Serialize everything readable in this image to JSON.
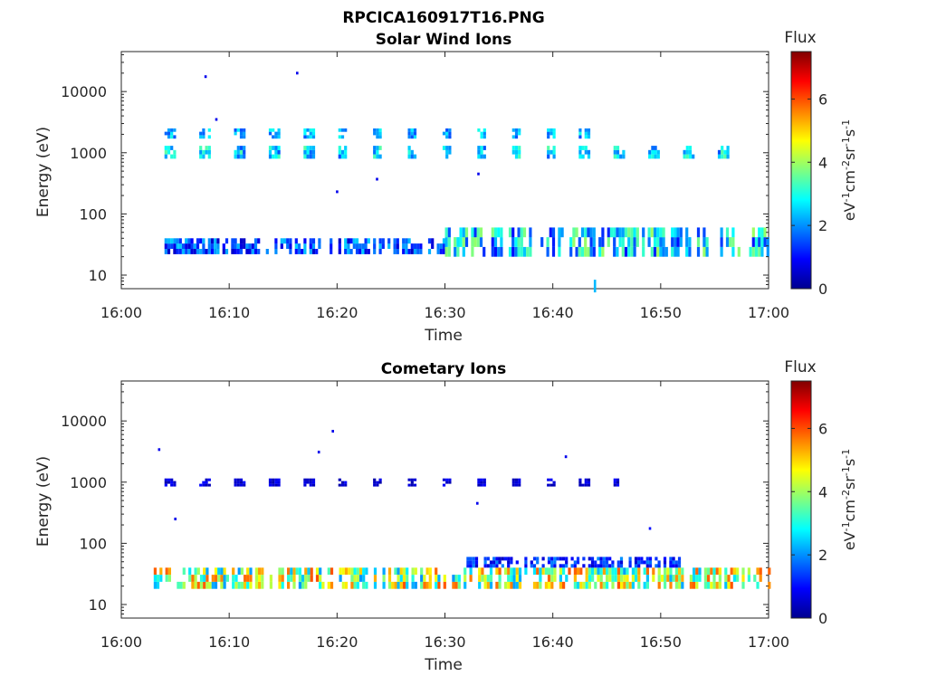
{
  "figure_title": "RPCICA160917T16.PNG",
  "colorbar": {
    "title": "Flux",
    "label_base": "eV",
    "label_parts": [
      "-1",
      "cm",
      "-2",
      "sr",
      "-1",
      "s",
      "-1"
    ],
    "ticks": [
      "0",
      "2",
      "4",
      "6"
    ],
    "range": [
      0,
      7.5
    ]
  },
  "chart_data": [
    {
      "type": "heatmap",
      "title": "Solar Wind Ions",
      "xlabel": "Time",
      "ylabel": "Energy (eV)",
      "xlim": [
        "16:00",
        "17:00"
      ],
      "x_ticks": [
        "16:00",
        "16:10",
        "16:20",
        "16:30",
        "16:40",
        "16:50",
        "17:00"
      ],
      "ylim": [
        6,
        45000
      ],
      "y_scale": "log",
      "y_ticks": [
        "10",
        "100",
        "1000",
        "10000"
      ],
      "bands": [
        {
          "t_start": "16:04",
          "t_end": "16:58",
          "e_low": 800,
          "e_high": 1300,
          "flux_range": [
            1.5,
            3.5
          ],
          "description": "periodic ion beams near 1 keV"
        },
        {
          "t_start": "16:04",
          "t_end": "16:45",
          "e_low": 1700,
          "e_high": 2500,
          "flux_range": [
            1.5,
            3.0
          ]
        },
        {
          "t_start": "16:04",
          "t_end": "16:30",
          "e_low": 22,
          "e_high": 40,
          "flux_range": [
            0.5,
            2.5
          ]
        },
        {
          "t_start": "16:30",
          "t_end": "17:00",
          "e_low": 20,
          "e_high": 60,
          "flux_range": [
            1.0,
            4.0
          ]
        }
      ],
      "points": [
        {
          "t": "16:07.8",
          "e": 17500,
          "flux": 0.8
        },
        {
          "t": "16:16.3",
          "e": 20000,
          "flux": 0.8
        },
        {
          "t": "16:08.8",
          "e": 3500,
          "flux": 0.8
        },
        {
          "t": "16:20",
          "e": 230,
          "flux": 0.8
        },
        {
          "t": "16:23.7",
          "e": 370,
          "flux": 0.8
        },
        {
          "t": "16:33.1",
          "e": 450,
          "flux": 0.8
        },
        {
          "t": "16:43.9",
          "e": 8,
          "flux": 2.3
        }
      ]
    },
    {
      "type": "heatmap",
      "title": "Cometary Ions",
      "xlabel": "Time",
      "ylabel": "Energy (eV)",
      "xlim": [
        "16:00",
        "17:00"
      ],
      "x_ticks": [
        "16:00",
        "16:10",
        "16:20",
        "16:30",
        "16:40",
        "16:50",
        "17:00"
      ],
      "ylim": [
        6,
        45000
      ],
      "y_scale": "log",
      "y_ticks": [
        "10",
        "100",
        "1000",
        "10000"
      ],
      "bands": [
        {
          "t_start": "16:03",
          "t_end": "17:00",
          "e_low": 18,
          "e_high": 40,
          "flux_range": [
            2.0,
            6.0
          ],
          "description": "periodic low-energy cometary ion population"
        },
        {
          "t_start": "16:04",
          "t_end": "16:46",
          "e_low": 850,
          "e_high": 1150,
          "flux_range": [
            0.3,
            1.0
          ]
        },
        {
          "t_start": "16:32",
          "t_end": "16:52",
          "e_low": 40,
          "e_high": 60,
          "flux_range": [
            0.5,
            2.0
          ]
        }
      ],
      "points": [
        {
          "t": "16:03.5",
          "e": 3400,
          "flux": 0.8
        },
        {
          "t": "16:19.6",
          "e": 6800,
          "flux": 0.8
        },
        {
          "t": "16:18.3",
          "e": 3100,
          "flux": 0.8
        },
        {
          "t": "16:41.2",
          "e": 2600,
          "flux": 0.8
        },
        {
          "t": "16:05",
          "e": 250,
          "flux": 0.8
        },
        {
          "t": "16:49",
          "e": 175,
          "flux": 1.0
        },
        {
          "t": "16:33",
          "e": 450,
          "flux": 0.8
        }
      ]
    }
  ]
}
